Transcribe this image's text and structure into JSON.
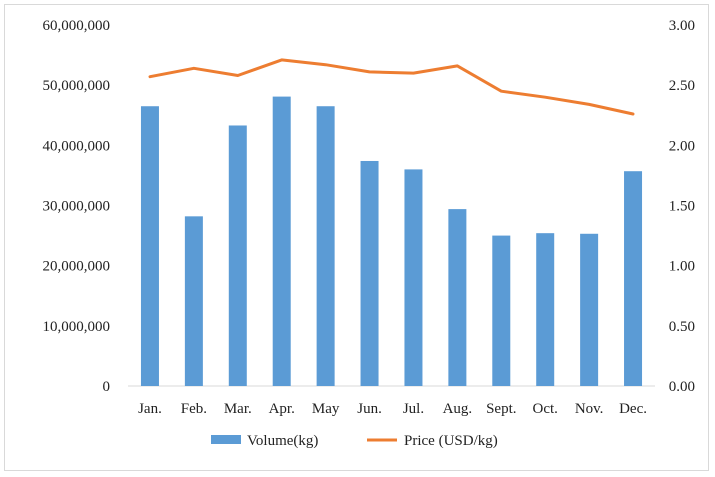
{
  "chart_data": {
    "type": "bar+line",
    "categories": [
      "Jan.",
      "Feb.",
      "Mar.",
      "Apr.",
      "May",
      "Jun.",
      "Jul.",
      "Aug.",
      "Sept.",
      "Oct.",
      "Nov.",
      "Dec."
    ],
    "series": [
      {
        "name": "Volume(kg)",
        "type": "bar",
        "axis": "left",
        "color": "#5b9bd5",
        "values": [
          46500000,
          28200000,
          43300000,
          48100000,
          46500000,
          37400000,
          36000000,
          29400000,
          25000000,
          25400000,
          25300000,
          35700000
        ]
      },
      {
        "name": "Price (USD/kg)",
        "type": "line",
        "axis": "right",
        "color": "#ed7d31",
        "values": [
          2.57,
          2.64,
          2.58,
          2.71,
          2.67,
          2.61,
          2.6,
          2.66,
          2.45,
          2.4,
          2.34,
          2.26
        ]
      }
    ],
    "y_left": {
      "range": [
        0,
        60000000
      ],
      "ticks": [
        "0",
        "10,000,000",
        "20,000,000",
        "30,000,000",
        "40,000,000",
        "50,000,000",
        "60,000,000"
      ]
    },
    "y_right": {
      "range": [
        0,
        3
      ],
      "ticks": [
        "0.00",
        "0.50",
        "1.00",
        "1.50",
        "2.00",
        "2.50",
        "3.00"
      ]
    },
    "grid": false,
    "legend_position": "bottom"
  }
}
